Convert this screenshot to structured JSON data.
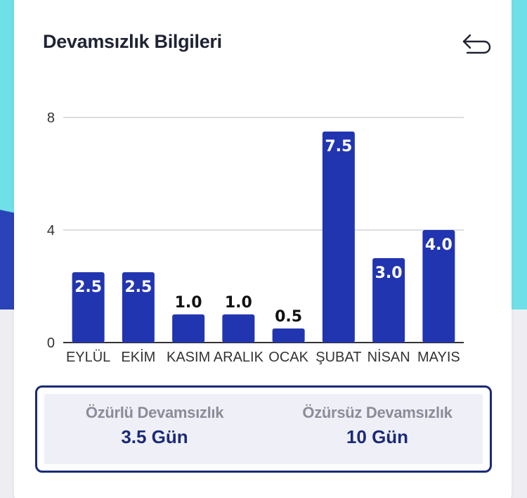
{
  "header": {
    "title": "Devamsızlık Bilgileri",
    "back_icon": "undo-arrow-icon"
  },
  "colors": {
    "bar": "#2235b0",
    "grid": "#dcdce2",
    "axis": "#333333",
    "summary_border": "#1b2a78"
  },
  "chart_data": {
    "type": "bar",
    "categories": [
      "EYLÜL",
      "EKİM",
      "KASIM",
      "ARALIK",
      "OCAK",
      "ŞUBAT",
      "NİSAN",
      "MAYIS"
    ],
    "values": [
      2.5,
      2.5,
      1.0,
      1.0,
      0.5,
      7.5,
      3.0,
      4.0
    ],
    "data_labels": [
      "2.5",
      "2.5",
      "1.0",
      "1.0",
      "0.5",
      "7.5",
      "3.0",
      "4.0"
    ],
    "yticks": [
      0,
      4,
      8
    ],
    "ylim": [
      0,
      8
    ],
    "grid": true
  },
  "summary": {
    "excused": {
      "label": "Özürlü Devamsızlık",
      "value": "3.5 Gün"
    },
    "unexcused": {
      "label": "Özürsüz Devamsızlık",
      "value": "10 Gün"
    }
  }
}
